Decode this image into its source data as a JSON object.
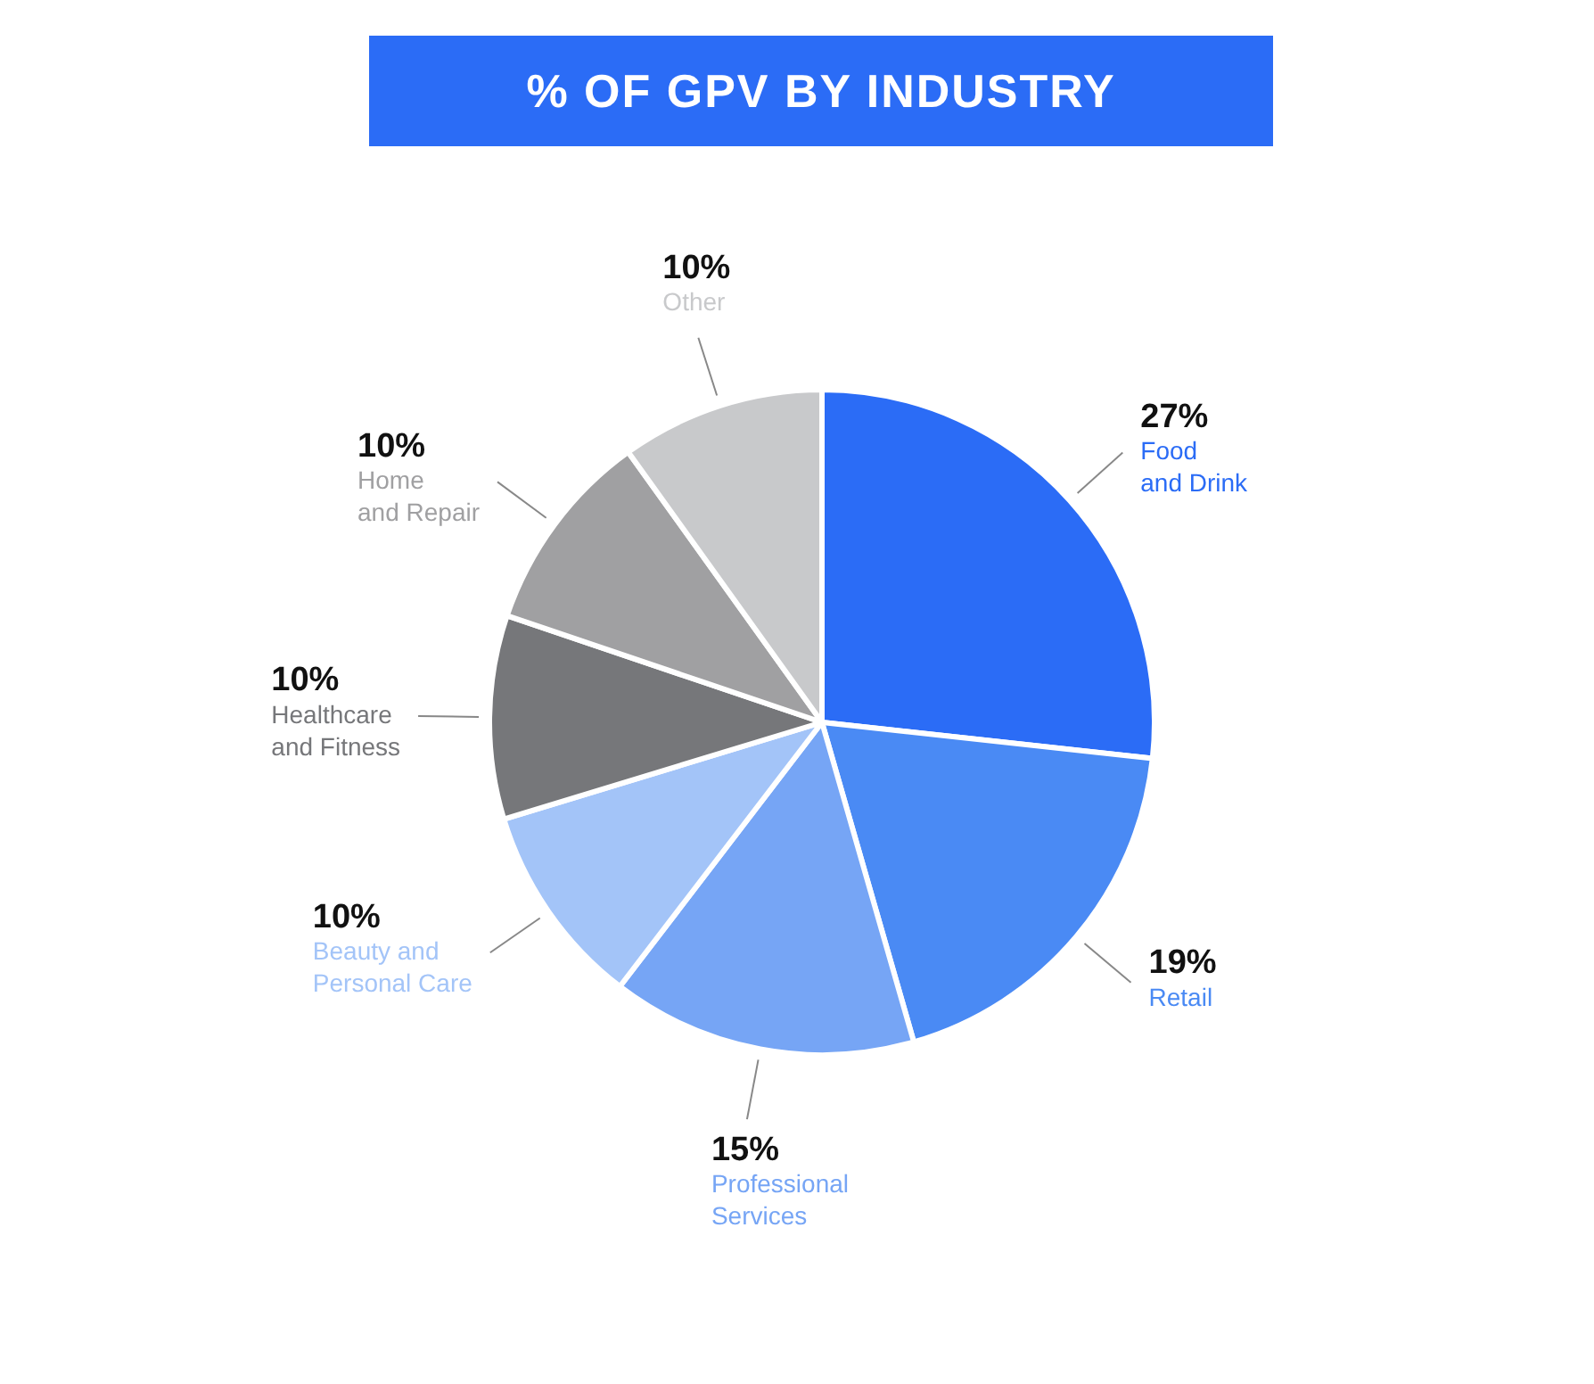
{
  "chart_data": {
    "type": "pie",
    "title": "% OF GPV BY INDUSTRY",
    "categories": [
      "Food\nand Drink",
      "Retail",
      "Professional\nServices",
      "Beauty and\nPersonal Care",
      "Healthcare\nand Fitness",
      "Home\nand Repair",
      "Other"
    ],
    "values": [
      27,
      19,
      15,
      10,
      10,
      10,
      10
    ],
    "colors": [
      "#2b6cf6",
      "#4a8af4",
      "#76a5f5",
      "#a3c4f8",
      "#76777a",
      "#a0a0a2",
      "#c8c9cb"
    ],
    "value_labels": [
      "27%",
      "19%",
      "15%",
      "10%",
      "10%",
      "10%",
      "10%"
    ]
  }
}
